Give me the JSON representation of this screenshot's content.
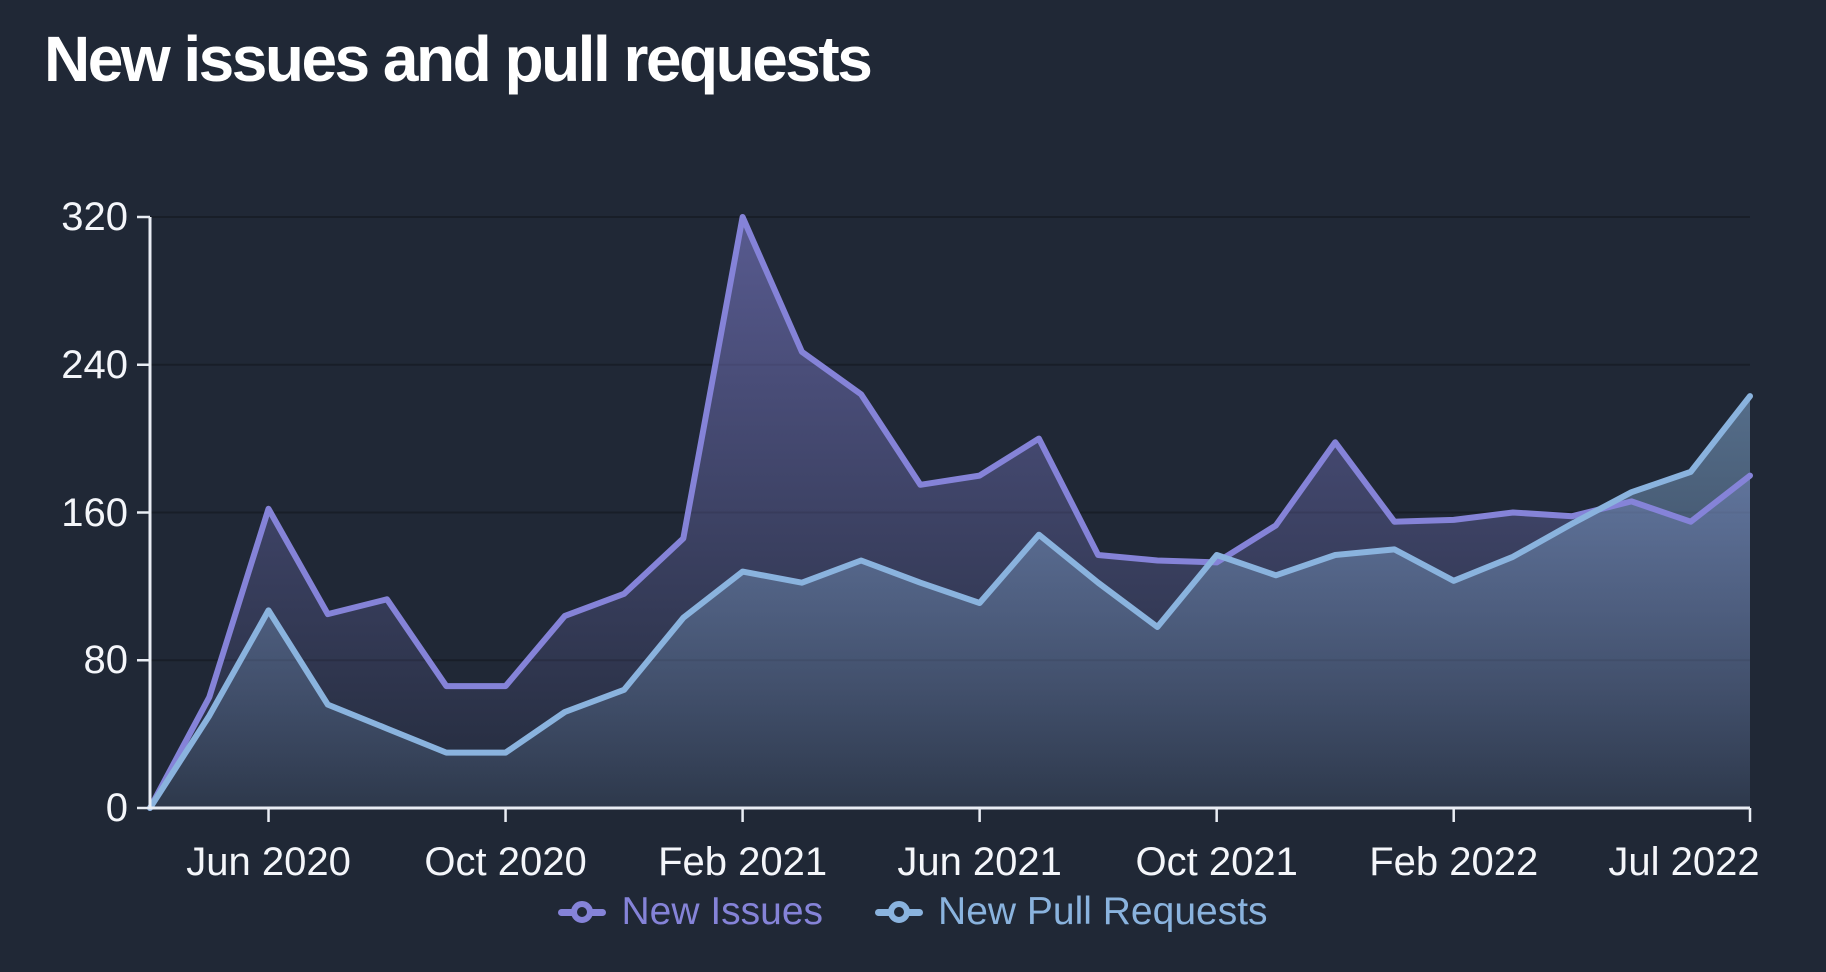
{
  "title": "New issues and pull requests",
  "colors": {
    "background": "#202836",
    "title": "#ffffff",
    "axis": "#e9edf4",
    "tick_label": "#f4f6fa",
    "gridline": "rgba(0,0,0,0.25)",
    "issues": "#8583d8",
    "pull_requests": "#8ab3de"
  },
  "chart_data": {
    "type": "area",
    "title": "New issues and pull requests",
    "xlabel": "",
    "ylabel": "",
    "ylim": [
      0,
      320
    ],
    "y_ticks": [
      0,
      80,
      160,
      240,
      320
    ],
    "y_tick_labels": [
      "0",
      "80",
      "160",
      "240",
      "320"
    ],
    "x": [
      "Apr 2020",
      "May 2020",
      "Jun 2020",
      "Jul 2020",
      "Aug 2020",
      "Sep 2020",
      "Oct 2020",
      "Nov 2020",
      "Dec 2020",
      "Jan 2021",
      "Feb 2021",
      "Mar 2021",
      "Apr 2021",
      "May 2021",
      "Jun 2021",
      "Jul 2021",
      "Aug 2021",
      "Sep 2021",
      "Oct 2021",
      "Nov 2021",
      "Dec 2021",
      "Jan 2022",
      "Feb 2022",
      "Mar 2022",
      "Apr 2022",
      "May 2022",
      "Jun 2022",
      "Jul 2022"
    ],
    "x_tick_labels": [
      "Jun 2020",
      "Oct 2020",
      "Feb 2021",
      "Jun 2021",
      "Oct 2021",
      "Feb 2022",
      "Jul 2022"
    ],
    "x_tick_indices": [
      2,
      6,
      10,
      14,
      18,
      22,
      27
    ],
    "grid": "horizontal",
    "legend_position": "bottom",
    "series": [
      {
        "name": "New Issues",
        "color": "#8583d8",
        "values": [
          0,
          60,
          162,
          105,
          113,
          66,
          66,
          104,
          116,
          146,
          320,
          247,
          224,
          175,
          180,
          200,
          137,
          134,
          133,
          153,
          198,
          155,
          156,
          160,
          158,
          166,
          155,
          180
        ]
      },
      {
        "name": "New Pull Requests",
        "color": "#8ab3de",
        "values": [
          0,
          50,
          107,
          56,
          43,
          30,
          30,
          52,
          64,
          103,
          128,
          122,
          134,
          122,
          111,
          148,
          122,
          98,
          137,
          126,
          137,
          140,
          123,
          136,
          154,
          171,
          182,
          223
        ]
      }
    ]
  }
}
